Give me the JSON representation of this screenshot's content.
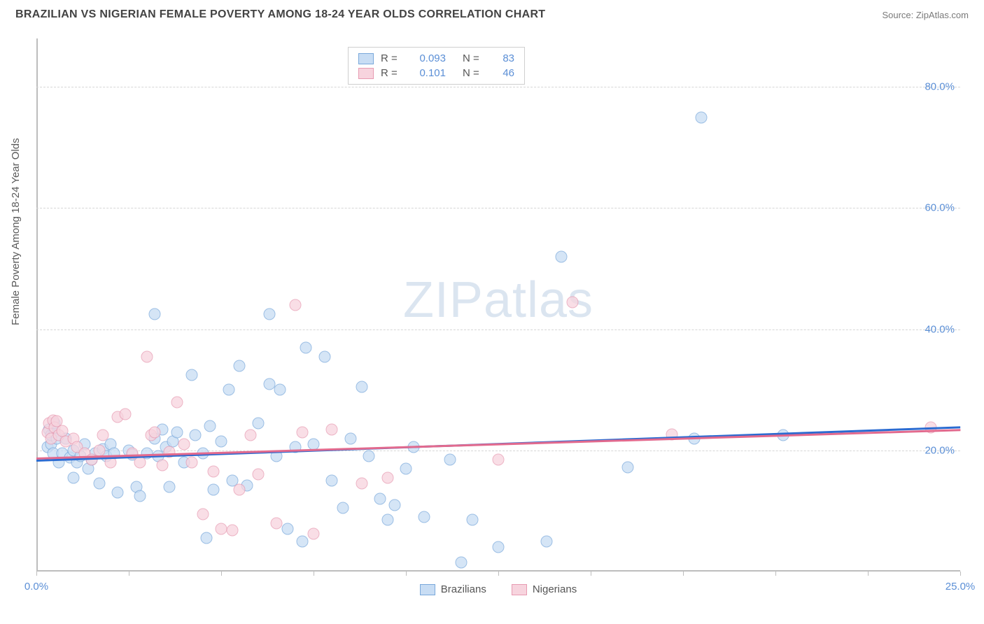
{
  "title": "BRAZILIAN VS NIGERIAN FEMALE POVERTY AMONG 18-24 YEAR OLDS CORRELATION CHART",
  "source_label": "Source: ",
  "source_value": "ZipAtlas.com",
  "y_axis_label": "Female Poverty Among 18-24 Year Olds",
  "watermark_a": "ZIP",
  "watermark_b": "atlas",
  "chart": {
    "type": "scatter",
    "xlim": [
      0,
      25
    ],
    "ylim": [
      0,
      88
    ],
    "x_ticks": [
      0,
      2.5,
      5,
      7.5,
      10,
      12.5,
      15,
      17.5,
      20,
      22.5,
      25
    ],
    "x_tick_labels": {
      "0": "0.0%",
      "25": "25.0%"
    },
    "y_ticks": [
      20,
      40,
      60,
      80
    ],
    "y_tick_labels": {
      "20": "20.0%",
      "40": "40.0%",
      "60": "60.0%",
      "80": "80.0%"
    },
    "grid_color": "#d6d6d6",
    "axis_color": "#bdbdbd",
    "tick_label_color": "#5b8fd6",
    "background_color": "#ffffff",
    "marker_size": 17,
    "marker_opacity": 0.75,
    "series": [
      {
        "name": "Brazilians",
        "fill": "#c8ddf4",
        "stroke": "#7aa9db",
        "r": "0.093",
        "n": "83",
        "trend": {
          "x1": 0,
          "y1": 18.5,
          "x2": 25,
          "y2": 24.0,
          "color": "#2b6bd1",
          "width": 2.5
        },
        "points": [
          [
            0.3,
            20.5
          ],
          [
            0.35,
            23.5
          ],
          [
            0.4,
            21
          ],
          [
            0.4,
            22.5
          ],
          [
            0.45,
            19.5
          ],
          [
            0.5,
            23
          ],
          [
            0.5,
            24.5
          ],
          [
            0.55,
            22
          ],
          [
            0.6,
            18
          ],
          [
            0.7,
            19.5
          ],
          [
            0.8,
            22
          ],
          [
            0.9,
            18.8
          ],
          [
            1.0,
            20
          ],
          [
            1.0,
            15.5
          ],
          [
            1.1,
            18
          ],
          [
            1.2,
            19
          ],
          [
            1.3,
            21
          ],
          [
            1.4,
            17
          ],
          [
            1.5,
            18.5
          ],
          [
            1.6,
            19.5
          ],
          [
            1.7,
            14.5
          ],
          [
            1.8,
            20.2
          ],
          [
            1.9,
            19
          ],
          [
            2.0,
            21
          ],
          [
            2.1,
            19.5
          ],
          [
            2.2,
            13
          ],
          [
            2.5,
            20
          ],
          [
            2.6,
            19.3
          ],
          [
            2.7,
            14
          ],
          [
            2.8,
            12.5
          ],
          [
            3.0,
            19.5
          ],
          [
            3.2,
            42.5
          ],
          [
            3.2,
            22
          ],
          [
            3.3,
            19
          ],
          [
            3.4,
            23.5
          ],
          [
            3.5,
            20.5
          ],
          [
            3.6,
            14
          ],
          [
            3.7,
            21.5
          ],
          [
            3.8,
            23
          ],
          [
            4.0,
            18
          ],
          [
            4.2,
            32.5
          ],
          [
            4.3,
            22.5
          ],
          [
            4.5,
            19.5
          ],
          [
            4.6,
            5.5
          ],
          [
            4.7,
            24
          ],
          [
            4.8,
            13.5
          ],
          [
            5.0,
            21.5
          ],
          [
            5.2,
            30
          ],
          [
            5.3,
            15
          ],
          [
            5.5,
            34
          ],
          [
            5.7,
            14.2
          ],
          [
            6.0,
            24.5
          ],
          [
            6.3,
            42.5
          ],
          [
            6.3,
            31
          ],
          [
            6.5,
            19
          ],
          [
            6.6,
            30
          ],
          [
            6.8,
            7
          ],
          [
            7.0,
            20.5
          ],
          [
            7.2,
            5
          ],
          [
            7.3,
            37
          ],
          [
            7.5,
            21
          ],
          [
            7.8,
            35.5
          ],
          [
            8.0,
            15
          ],
          [
            8.3,
            10.5
          ],
          [
            8.5,
            22
          ],
          [
            8.8,
            30.5
          ],
          [
            9.0,
            19
          ],
          [
            9.3,
            12
          ],
          [
            9.5,
            8.5
          ],
          [
            9.7,
            11
          ],
          [
            10.0,
            17
          ],
          [
            10.2,
            20.5
          ],
          [
            10.5,
            9
          ],
          [
            11.2,
            18.5
          ],
          [
            11.5,
            1.5
          ],
          [
            11.8,
            8.5
          ],
          [
            12.5,
            4
          ],
          [
            13.8,
            5
          ],
          [
            14.2,
            52
          ],
          [
            16.0,
            17.2
          ],
          [
            18.0,
            75
          ],
          [
            20.2,
            22.5
          ],
          [
            17.8,
            22
          ]
        ]
      },
      {
        "name": "Nigerians",
        "fill": "#f7d4de",
        "stroke": "#e79bb2",
        "r": "0.101",
        "n": "46",
        "trend": {
          "x1": 0,
          "y1": 18.8,
          "x2": 25,
          "y2": 23.5,
          "color": "#e26a8e",
          "width": 2.5
        },
        "points": [
          [
            0.3,
            23
          ],
          [
            0.35,
            24.5
          ],
          [
            0.4,
            22
          ],
          [
            0.45,
            25
          ],
          [
            0.5,
            23.8
          ],
          [
            0.55,
            24.8
          ],
          [
            0.6,
            22.5
          ],
          [
            0.7,
            23.2
          ],
          [
            0.8,
            21.5
          ],
          [
            1.0,
            22
          ],
          [
            1.1,
            20.5
          ],
          [
            1.3,
            19.5
          ],
          [
            1.5,
            18.5
          ],
          [
            1.7,
            20
          ],
          [
            1.8,
            22.5
          ],
          [
            2.0,
            18
          ],
          [
            2.2,
            25.5
          ],
          [
            2.4,
            26
          ],
          [
            2.6,
            19.5
          ],
          [
            2.8,
            18
          ],
          [
            3.0,
            35.5
          ],
          [
            3.1,
            22.5
          ],
          [
            3.2,
            23
          ],
          [
            3.4,
            17.5
          ],
          [
            3.6,
            19.8
          ],
          [
            3.8,
            28
          ],
          [
            4.0,
            21
          ],
          [
            4.2,
            18
          ],
          [
            4.5,
            9.5
          ],
          [
            4.8,
            16.5
          ],
          [
            5.0,
            7
          ],
          [
            5.3,
            6.8
          ],
          [
            5.5,
            13.5
          ],
          [
            5.8,
            22.5
          ],
          [
            6.0,
            16
          ],
          [
            6.5,
            8
          ],
          [
            7.0,
            44
          ],
          [
            7.2,
            23
          ],
          [
            7.5,
            6.2
          ],
          [
            8.0,
            23.5
          ],
          [
            8.8,
            14.5
          ],
          [
            9.5,
            15.5
          ],
          [
            12.5,
            18.5
          ],
          [
            14.5,
            44.5
          ],
          [
            17.2,
            22.6
          ],
          [
            24.2,
            23.8
          ]
        ]
      }
    ],
    "legend_top": {
      "r_label": "R =",
      "n_label": "N ="
    },
    "legend_bottom": [
      "Brazilians",
      "Nigerians"
    ]
  }
}
